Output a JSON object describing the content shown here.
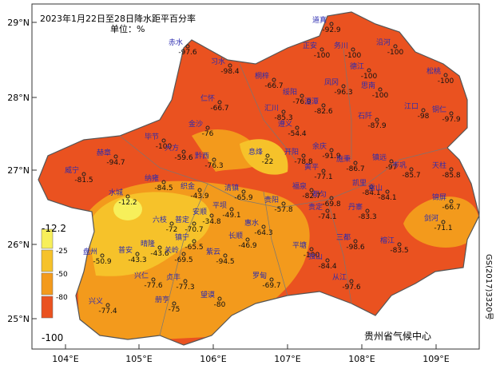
{
  "title": "2023年1月22日至28日降水距平百分率",
  "unit": "单位：%",
  "lat_ticks": [
    "29°N",
    "28°N",
    "27°N",
    "26°N",
    "25°N"
  ],
  "lon_ticks": [
    "104°E",
    "105°E",
    "106°E",
    "107°E",
    "108°E",
    "109°E"
  ],
  "legend": {
    "labels": [
      "-12.2",
      "-25",
      "-50",
      "-80",
      "-100"
    ],
    "colors": [
      "#f7ef5a",
      "#f6c22a",
      "#f39a1c",
      "#ea5220"
    ]
  },
  "credit": "贵州省气候中心",
  "approval": "GS(2017)3320号",
  "stations": [
    [
      "赤水",
      -97.6
    ],
    [
      "习水",
      -98.4
    ],
    [
      "桐梓",
      -66.7
    ],
    [
      "绥阳",
      -76.9
    ],
    [
      "道真",
      -92.9
    ],
    [
      "正安",
      -100.0
    ],
    [
      "务川",
      -100.0
    ],
    [
      "沿河",
      -100.0
    ],
    [
      "德江",
      -100.0
    ],
    [
      "思南",
      -100.0
    ],
    [
      "松桃",
      -100.0
    ],
    [
      "凤冈",
      -96.3
    ],
    [
      "湄潭",
      -82.6
    ],
    [
      "仁怀",
      -66.7
    ],
    [
      "汇川",
      -85.3
    ],
    [
      "遵义",
      -54.4
    ],
    [
      "金沙",
      -76.0
    ],
    [
      "石阡",
      -87.9
    ],
    [
      "江口",
      -98.0
    ],
    [
      "铜仁",
      -97.9
    ],
    [
      "毕节",
      -100.0
    ],
    [
      "大方",
      -59.6
    ],
    [
      "黔西",
      -76.3
    ],
    [
      "赫章",
      -94.7
    ],
    [
      "威宁",
      -81.5
    ],
    [
      "息烽",
      -22.0
    ],
    [
      "开阳",
      -78.8
    ],
    [
      "余庆",
      -91.9
    ],
    [
      "施秉",
      -86.7
    ],
    [
      "镇远",
      -97.0
    ],
    [
      "岑巩",
      -85.7
    ],
    [
      "天柱",
      -85.8
    ],
    [
      "纳雍",
      -84.5
    ],
    [
      "织金",
      -43.9
    ],
    [
      "清镇",
      -65.9
    ],
    [
      "贵阳",
      -57.8
    ],
    [
      "黄平",
      -77.1
    ],
    [
      "凯里",
      -84.1
    ],
    [
      "雷山",
      -84.1
    ],
    [
      "锦屏",
      -66.7
    ],
    [
      "剑河",
      -71.1
    ],
    [
      "水城",
      -12.2
    ],
    [
      "六枝",
      -72.0
    ],
    [
      "安顺",
      -34.8
    ],
    [
      "普定",
      -70.7
    ],
    [
      "镇宁",
      -65.5
    ],
    [
      "平坝",
      -49.1
    ],
    [
      "长顺",
      -46.9
    ],
    [
      "惠水",
      -64.3
    ],
    [
      "都匀",
      -69.8
    ],
    [
      "丹寨",
      -83.3
    ],
    [
      "福泉",
      -82.7
    ],
    [
      "贵定",
      -74.1
    ],
    [
      "盘州",
      -50.9
    ],
    [
      "普安",
      -43.3
    ],
    [
      "晴隆",
      -43.6
    ],
    [
      "关岭",
      -69.5
    ],
    [
      "紫云",
      -94.5
    ],
    [
      "罗甸",
      -69.7
    ],
    [
      "平塘",
      -100.0
    ],
    [
      "独山",
      -84.4
    ],
    [
      "三都",
      -98.6
    ],
    [
      "榕江",
      -83.5
    ],
    [
      "从江",
      -97.6
    ],
    [
      "兴仁",
      -77.6
    ],
    [
      "贞丰",
      -77.3
    ],
    [
      "册亨",
      -75.0
    ],
    [
      "望谟",
      -80.0
    ],
    [
      "兴义",
      -77.4
    ]
  ]
}
